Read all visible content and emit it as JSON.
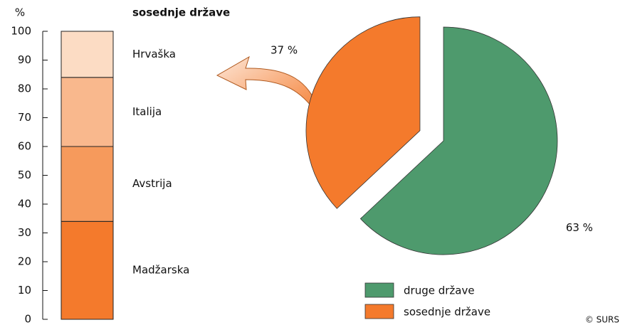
{
  "source": "© SURS",
  "chart_data": [
    {
      "type": "bar",
      "stacked": true,
      "title": "sosednje države",
      "y_label": "%",
      "categories": [
        null
      ],
      "series": [
        {
          "name": "Madžarska",
          "color": "#f47a2c",
          "values": [
            34
          ]
        },
        {
          "name": "Avstrija",
          "color": "#f69a5c",
          "values": [
            26
          ]
        },
        {
          "name": "Italija",
          "color": "#f9b88d",
          "values": [
            24
          ]
        },
        {
          "name": "Hrvaška",
          "color": "#fcdcc4",
          "values": [
            16
          ]
        }
      ],
      "ylim": [
        0,
        100
      ],
      "yticks": [
        0,
        10,
        20,
        30,
        40,
        50,
        60,
        70,
        80,
        90,
        100
      ]
    },
    {
      "type": "pie",
      "categories": [
        "druge države",
        "sosednje države"
      ],
      "values": [
        63,
        37
      ],
      "value_labels": [
        "63 %",
        "37 %"
      ],
      "colors": [
        "#4e9a6d",
        "#f47a2c"
      ],
      "legend": "bottom"
    }
  ]
}
